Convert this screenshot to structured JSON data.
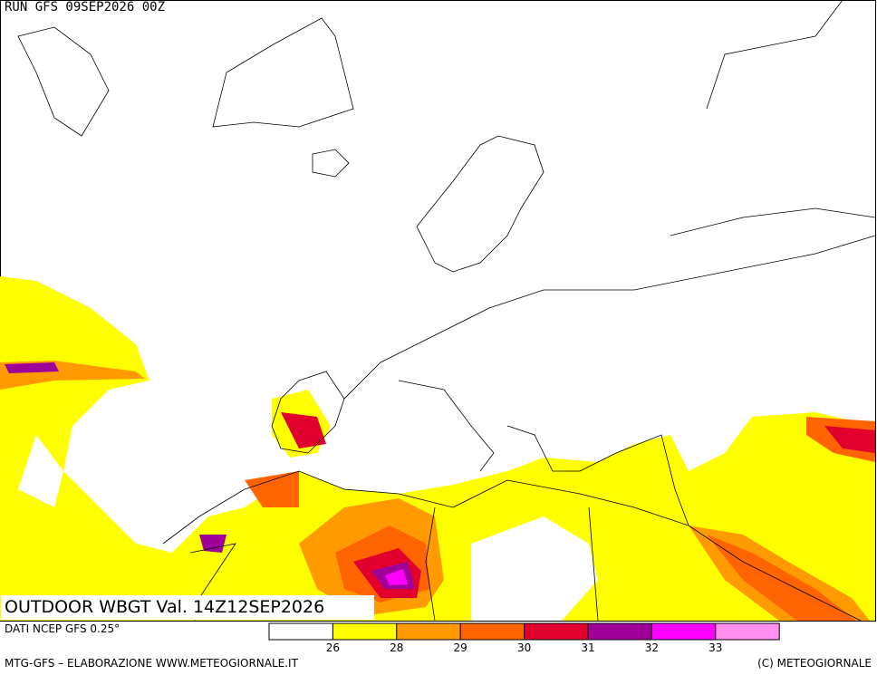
{
  "header": {
    "run": "RUN GFS 09SEP2026 00Z"
  },
  "map": {
    "label": "OUTDOOR WBGT Val. 14Z12SEP2026"
  },
  "legend": {
    "colors": [
      "#ffffff",
      "#ffff00",
      "#ff9a00",
      "#ff6400",
      "#e1002d",
      "#a0009a",
      "#ff00ff",
      "#ff90f0"
    ],
    "ticks": [
      26,
      28,
      29,
      30,
      31,
      32,
      33
    ]
  },
  "footer": {
    "source": "DATI NCEP GFS 0.25°",
    "credit": "MTG-GFS – ELABORAZIONE WWW.METEOGIORNALE.IT",
    "copyright": "(C) METEOGIORNALE"
  }
}
